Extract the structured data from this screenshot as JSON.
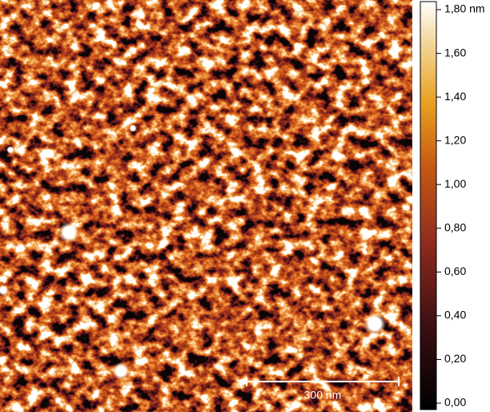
{
  "colorbar": {
    "range": [
      0,
      1.8
    ],
    "ticks": [
      {
        "value": 1.8,
        "label": "1,80 nm"
      },
      {
        "value": 1.6,
        "label": "1,60"
      },
      {
        "value": 1.4,
        "label": "1,40"
      },
      {
        "value": 1.2,
        "label": "1,20"
      },
      {
        "value": 1.0,
        "label": "1,00"
      },
      {
        "value": 0.8,
        "label": "0,80"
      },
      {
        "value": 0.6,
        "label": "0,60"
      },
      {
        "value": 0.4,
        "label": "0,40"
      },
      {
        "value": 0.2,
        "label": "0,20"
      },
      {
        "value": 0.0,
        "label": "0,00"
      }
    ]
  },
  "scalebar": {
    "label": "300 nm"
  }
}
